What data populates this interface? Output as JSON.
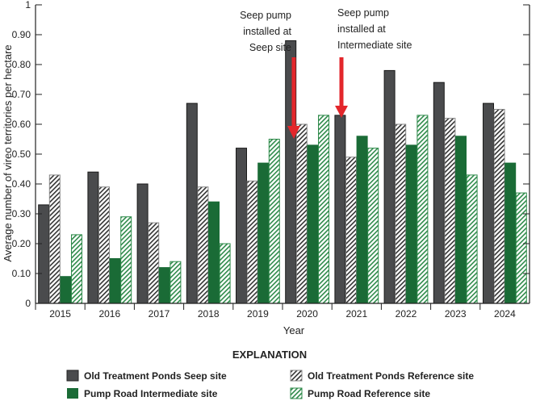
{
  "chart_data": {
    "type": "bar",
    "title": "",
    "xlabel": "Year",
    "ylabel": "Average number of vireo territories per hectare",
    "ylim": [
      0,
      1
    ],
    "yticks": [
      "0",
      "0.10",
      "0.20",
      "0.30",
      "0.40",
      "0.50",
      "0.60",
      "0.70",
      "0.80",
      "0.90",
      "1"
    ],
    "categories": [
      "2015",
      "2016",
      "2017",
      "2018",
      "2019",
      "2020",
      "2021",
      "2022",
      "2023",
      "2024"
    ],
    "legend_title": "EXPLANATION",
    "legend_position": "bottom",
    "grid": false,
    "series": [
      {
        "name": "Old Treatment Ponds Seep site",
        "color": "#4a4b4d",
        "pattern": "solid",
        "values": [
          0.33,
          0.44,
          0.4,
          0.67,
          0.52,
          0.88,
          0.63,
          0.78,
          0.74,
          0.67
        ]
      },
      {
        "name": "Old Treatment Ponds Reference site",
        "color": "#333333",
        "pattern": "hatched",
        "values": [
          0.43,
          0.39,
          0.27,
          0.39,
          0.41,
          0.6,
          0.49,
          0.6,
          0.62,
          0.65
        ]
      },
      {
        "name": "Pump Road Intermediate site",
        "color": "#1a6b36",
        "pattern": "solid",
        "values": [
          0.09,
          0.15,
          0.12,
          0.34,
          0.47,
          0.53,
          0.56,
          0.53,
          0.56,
          0.47
        ]
      },
      {
        "name": "Pump Road Reference site",
        "color": "#2e8a4a",
        "pattern": "hatched",
        "values": [
          0.23,
          0.29,
          0.14,
          0.2,
          0.55,
          0.63,
          0.52,
          0.63,
          0.43,
          0.37
        ]
      }
    ],
    "annotations": [
      {
        "lines": [
          "Seep pump",
          "installed at",
          "Seep site"
        ],
        "arrow_color": "#e3262b",
        "between": [
          "2019",
          "2020"
        ]
      },
      {
        "lines": [
          "Seep pump",
          "installed at",
          "Intermediate site"
        ],
        "arrow_color": "#e3262b",
        "between": [
          "2020",
          "2021"
        ]
      }
    ]
  }
}
